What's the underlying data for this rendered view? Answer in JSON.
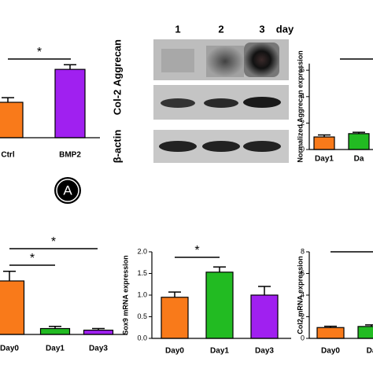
{
  "chart_data": [
    {
      "type": "bar",
      "categories": [
        "Ctrl",
        "BMP2"
      ],
      "values": [
        1.0,
        1.93
      ],
      "errors": [
        0.13,
        0.13
      ],
      "colors": [
        "#f97a1a",
        "#a020f0"
      ],
      "annotations": [
        "*"
      ]
    },
    {
      "type": "bar",
      "y_label": "Normalized Aggrecan expression",
      "categories": [
        "Day1",
        "Da"
      ],
      "values": [
        0.95,
        1.2
      ],
      "errors": [
        0.15,
        0.1
      ],
      "colors": [
        "#f97a1a",
        "#22bb22"
      ],
      "ylim": [
        0,
        6.5
      ],
      "yticks": [
        0,
        2,
        4,
        6
      ]
    },
    {
      "type": "bar",
      "categories": [
        "Day0",
        "Day1",
        "Day3"
      ],
      "values": [
        1.0,
        0.11,
        0.08
      ],
      "errors": [
        0.18,
        0.04,
        0.03
      ],
      "colors": [
        "#f97a1a",
        "#22bb22",
        "#a020f0"
      ],
      "annotations": [
        "*",
        "*"
      ]
    },
    {
      "type": "bar",
      "y_label": "Sox9 mRNA expression",
      "categories": [
        "Day0",
        "Day1",
        "Day3"
      ],
      "values": [
        0.95,
        1.53,
        1.0
      ],
      "errors": [
        0.12,
        0.12,
        0.2
      ],
      "colors": [
        "#f97a1a",
        "#22bb22",
        "#a020f0"
      ],
      "ylim": [
        0,
        2.0
      ],
      "yticks": [
        {
          "value": 0,
          "label": "0.0"
        },
        {
          "value": 0.5,
          "label": "0.5"
        },
        {
          "value": 1.0,
          "label": "1.0"
        },
        {
          "value": 1.5,
          "label": "1.5"
        },
        {
          "value": 2.0,
          "label": "2.0"
        }
      ],
      "annotations": [
        "*"
      ]
    },
    {
      "type": "bar",
      "y_label": "Col2 mRNA expression",
      "categories": [
        "Day0",
        "Da"
      ],
      "values": [
        1.0,
        1.1
      ],
      "errors": [
        0.12,
        0.15
      ],
      "colors": [
        "#f97a1a",
        "#22bb22"
      ],
      "ylim": [
        0,
        8
      ],
      "yticks": [
        0,
        2,
        4,
        6,
        8
      ]
    }
  ],
  "blot": {
    "lanes": [
      "1",
      "2",
      "3"
    ],
    "unit": "day",
    "rows": [
      "Aggrecan",
      "Col-2",
      "β-actin"
    ]
  },
  "panel_label": "A"
}
